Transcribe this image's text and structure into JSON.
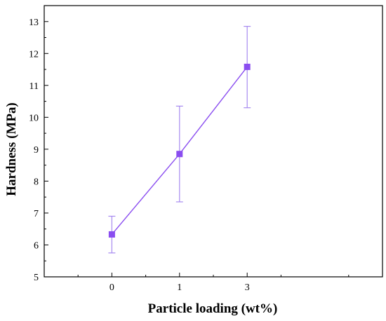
{
  "chart_data": {
    "type": "line",
    "title": "",
    "xlabel": "Particle loading (wt%)",
    "ylabel": "Hardness (MPa)",
    "categories": [
      "0",
      "1",
      "3"
    ],
    "series": [
      {
        "values": [
          6.33,
          8.85,
          11.58
        ],
        "error_low": [
          5.75,
          7.35,
          10.3
        ],
        "error_high": [
          6.9,
          10.35,
          12.85
        ]
      }
    ],
    "ylim": [
      5,
      13.5
    ],
    "yticks": [
      "5",
      "6",
      "7",
      "8",
      "9",
      "10",
      "11",
      "12",
      "13"
    ],
    "xlim": [
      -1,
      4
    ],
    "grid": false,
    "legend": "none",
    "marker": "square",
    "colors": {
      "series": "#8A4DF0",
      "errorbar": "#A78AF0",
      "axis": "#000000"
    }
  }
}
